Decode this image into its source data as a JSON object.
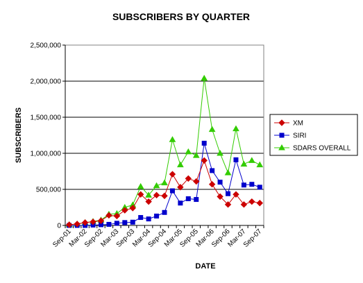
{
  "chart_data": {
    "type": "line",
    "title": "SUBSCRIBERS BY QUARTER",
    "xlabel": "DATE",
    "ylabel": "SUBSCRIBERS",
    "ylim": [
      0,
      2500000
    ],
    "yticks": [
      "0",
      "500,000",
      "1,000,000",
      "1,500,000",
      "2,000,000",
      "2,500,000"
    ],
    "y_tick_values": [
      0,
      500000,
      1000000,
      1500000,
      2000000,
      2500000
    ],
    "grid": true,
    "legend_position": "right",
    "x_tick_labels": [
      "Sep-01",
      "Mar-02",
      "Sep-02",
      "Mar-03",
      "Sep-03",
      "Mar-04",
      "Sep-04",
      "Mar-05",
      "Sep-05",
      "Mar-06",
      "Sep-06",
      "Mar-07",
      "Sep-07"
    ],
    "x": [
      "Sep-01",
      "Dec-01",
      "Mar-02",
      "Jun-02",
      "Sep-02",
      "Dec-02",
      "Mar-03",
      "Jun-03",
      "Sep-03",
      "Dec-03",
      "Mar-04",
      "Jun-04",
      "Sep-04",
      "Dec-04",
      "Mar-05",
      "Jun-05",
      "Sep-05",
      "Dec-05",
      "Mar-06",
      "Jun-06",
      "Sep-06",
      "Dec-06",
      "Mar-07",
      "Jun-07",
      "Sep-07"
    ],
    "series": [
      {
        "name": "XM",
        "color": "#cc0000",
        "marker": "diamond",
        "values": [
          10000,
          20000,
          40000,
          50000,
          65000,
          140000,
          130000,
          210000,
          240000,
          430000,
          330000,
          420000,
          410000,
          710000,
          530000,
          650000,
          610000,
          900000,
          570000,
          400000,
          290000,
          430000,
          290000,
          330000,
          310000
        ]
      },
      {
        "name": "SIRI",
        "color": "#0000cc",
        "marker": "square",
        "values": [
          0,
          0,
          0,
          5000,
          10000,
          15000,
          30000,
          40000,
          45000,
          110000,
          90000,
          130000,
          180000,
          480000,
          310000,
          370000,
          360000,
          1140000,
          760000,
          600000,
          440000,
          910000,
          560000,
          570000,
          530000
        ]
      },
      {
        "name": "SDARS OVERALL",
        "color": "#33cc00",
        "marker": "triangle",
        "values": [
          10000,
          20000,
          40000,
          55000,
          75000,
          155000,
          165000,
          250000,
          285000,
          540000,
          420000,
          550000,
          590000,
          1190000,
          840000,
          1020000,
          970000,
          2040000,
          1330000,
          1000000,
          730000,
          1340000,
          850000,
          900000,
          840000
        ]
      }
    ]
  }
}
